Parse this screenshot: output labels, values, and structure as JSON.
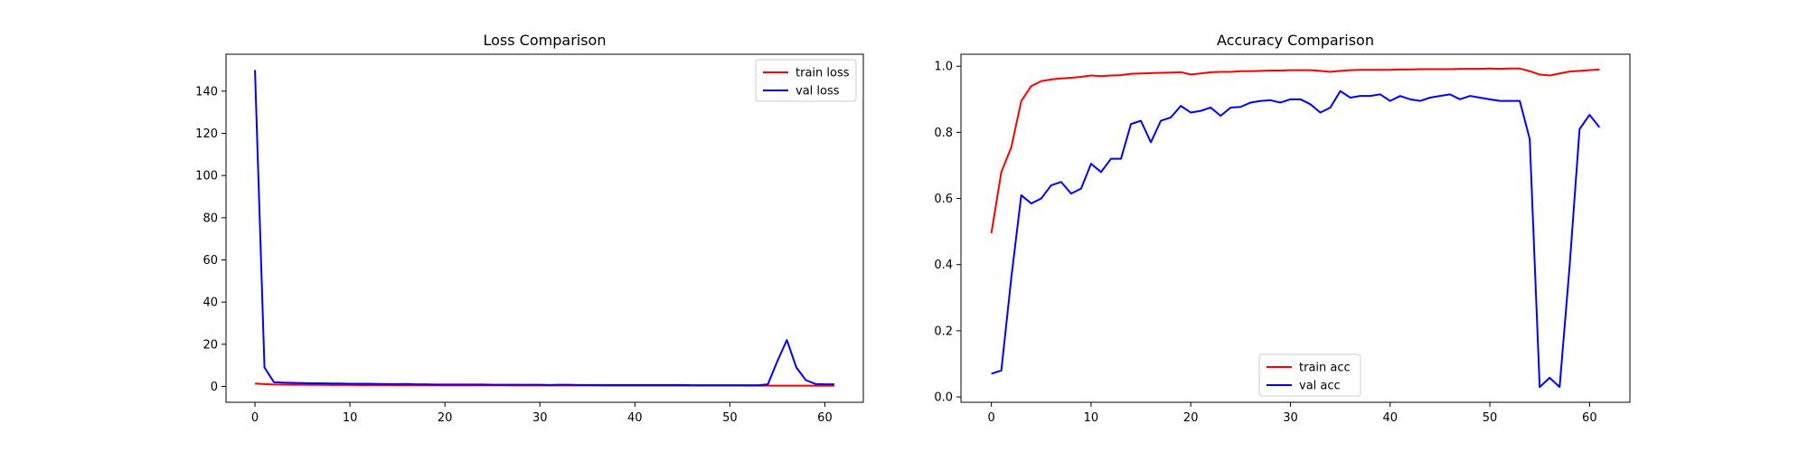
{
  "chart_data": [
    {
      "type": "line",
      "title": "Loss Comparison",
      "xlabel": "",
      "ylabel": "",
      "xlim": [
        -3.05,
        64.05
      ],
      "ylim": [
        -7.5,
        157.5
      ],
      "xticks": [
        0,
        10,
        20,
        30,
        40,
        50,
        60
      ],
      "yticks": [
        0,
        20,
        40,
        60,
        80,
        100,
        120,
        140
      ],
      "grid": false,
      "legend_position": "top-right",
      "x": [
        0,
        1,
        2,
        3,
        4,
        5,
        6,
        7,
        8,
        9,
        10,
        11,
        12,
        13,
        14,
        15,
        16,
        17,
        18,
        19,
        20,
        21,
        22,
        23,
        24,
        25,
        26,
        27,
        28,
        29,
        30,
        31,
        32,
        33,
        34,
        35,
        36,
        37,
        38,
        39,
        40,
        41,
        42,
        43,
        44,
        45,
        46,
        47,
        48,
        49,
        50,
        51,
        52,
        53,
        54,
        55,
        56,
        57,
        58,
        59,
        60,
        61
      ],
      "series": [
        {
          "name": "train loss",
          "color": "#ff0000",
          "values": [
            1.4,
            1.1,
            0.9,
            0.85,
            0.8,
            0.78,
            0.75,
            0.73,
            0.72,
            0.7,
            0.68,
            0.66,
            0.65,
            0.63,
            0.62,
            0.6,
            0.6,
            0.58,
            0.57,
            0.56,
            0.55,
            0.55,
            0.54,
            0.53,
            0.52,
            0.52,
            0.51,
            0.5,
            0.5,
            0.49,
            0.49,
            0.48,
            0.48,
            0.47,
            0.47,
            0.46,
            0.46,
            0.45,
            0.45,
            0.45,
            0.44,
            0.44,
            0.44,
            0.43,
            0.43,
            0.43,
            0.42,
            0.42,
            0.42,
            0.41,
            0.41,
            0.41,
            0.4,
            0.4,
            0.4,
            0.4,
            0.4,
            0.39,
            0.39,
            0.39,
            0.38,
            0.38
          ]
        },
        {
          "name": "val loss",
          "color": "#0000ff",
          "values": [
            150,
            9,
            2,
            1.8,
            1.7,
            1.6,
            1.5,
            1.5,
            1.4,
            1.4,
            1.3,
            1.3,
            1.3,
            1.2,
            1.1,
            1.1,
            1.2,
            1.0,
            1.0,
            0.9,
            0.9,
            0.9,
            0.9,
            0.9,
            0.9,
            0.8,
            0.8,
            0.8,
            0.8,
            0.8,
            0.8,
            0.7,
            0.8,
            0.8,
            0.7,
            0.7,
            0.7,
            0.7,
            0.7,
            0.7,
            0.7,
            0.7,
            0.7,
            0.7,
            0.7,
            0.7,
            0.6,
            0.6,
            0.6,
            0.6,
            0.6,
            0.6,
            0.6,
            0.6,
            1.0,
            12,
            22,
            9,
            3,
            1.2,
            1.0,
            1.0
          ]
        }
      ]
    },
    {
      "type": "line",
      "title": "Accuracy Comparison",
      "xlabel": "",
      "ylabel": "",
      "xlim": [
        -3.05,
        64.05
      ],
      "ylim": [
        -0.0162,
        1.0362
      ],
      "xticks": [
        0,
        10,
        20,
        30,
        40,
        50,
        60
      ],
      "yticks": [
        0.0,
        0.2,
        0.4,
        0.6,
        0.8,
        1.0
      ],
      "ytick_labels": [
        "0.0",
        "0.2",
        "0.4",
        "0.6",
        "0.8",
        "1.0"
      ],
      "grid": false,
      "legend_position": "bottom-center",
      "x": [
        0,
        1,
        2,
        3,
        4,
        5,
        6,
        7,
        8,
        9,
        10,
        11,
        12,
        13,
        14,
        15,
        16,
        17,
        18,
        19,
        20,
        21,
        22,
        23,
        24,
        25,
        26,
        27,
        28,
        29,
        30,
        31,
        32,
        33,
        34,
        35,
        36,
        37,
        38,
        39,
        40,
        41,
        42,
        43,
        44,
        45,
        46,
        47,
        48,
        49,
        50,
        51,
        52,
        53,
        54,
        55,
        56,
        57,
        58,
        59,
        60,
        61
      ],
      "series": [
        {
          "name": "train acc",
          "color": "#ff0000",
          "values": [
            0.495,
            0.68,
            0.755,
            0.895,
            0.94,
            0.955,
            0.96,
            0.963,
            0.965,
            0.968,
            0.972,
            0.97,
            0.972,
            0.973,
            0.977,
            0.978,
            0.979,
            0.98,
            0.981,
            0.982,
            0.975,
            0.978,
            0.982,
            0.983,
            0.983,
            0.985,
            0.985,
            0.986,
            0.987,
            0.987,
            0.988,
            0.988,
            0.988,
            0.986,
            0.983,
            0.986,
            0.988,
            0.989,
            0.989,
            0.989,
            0.989,
            0.99,
            0.99,
            0.991,
            0.991,
            0.991,
            0.991,
            0.992,
            0.992,
            0.992,
            0.993,
            0.992,
            0.993,
            0.993,
            0.985,
            0.975,
            0.972,
            0.978,
            0.984,
            0.986,
            0.988,
            0.99
          ]
        },
        {
          "name": "val acc",
          "color": "#0000ff",
          "values": [
            0.07,
            0.08,
            0.36,
            0.61,
            0.585,
            0.6,
            0.64,
            0.65,
            0.615,
            0.63,
            0.705,
            0.68,
            0.72,
            0.72,
            0.825,
            0.835,
            0.77,
            0.835,
            0.845,
            0.88,
            0.86,
            0.865,
            0.875,
            0.85,
            0.875,
            0.877,
            0.89,
            0.895,
            0.897,
            0.89,
            0.9,
            0.9,
            0.885,
            0.86,
            0.875,
            0.925,
            0.905,
            0.91,
            0.91,
            0.915,
            0.895,
            0.91,
            0.9,
            0.895,
            0.905,
            0.91,
            0.915,
            0.9,
            0.91,
            0.905,
            0.9,
            0.895,
            0.895,
            0.895,
            0.78,
            0.03,
            0.058,
            0.03,
            0.395,
            0.81,
            0.853,
            0.815
          ]
        }
      ]
    }
  ]
}
